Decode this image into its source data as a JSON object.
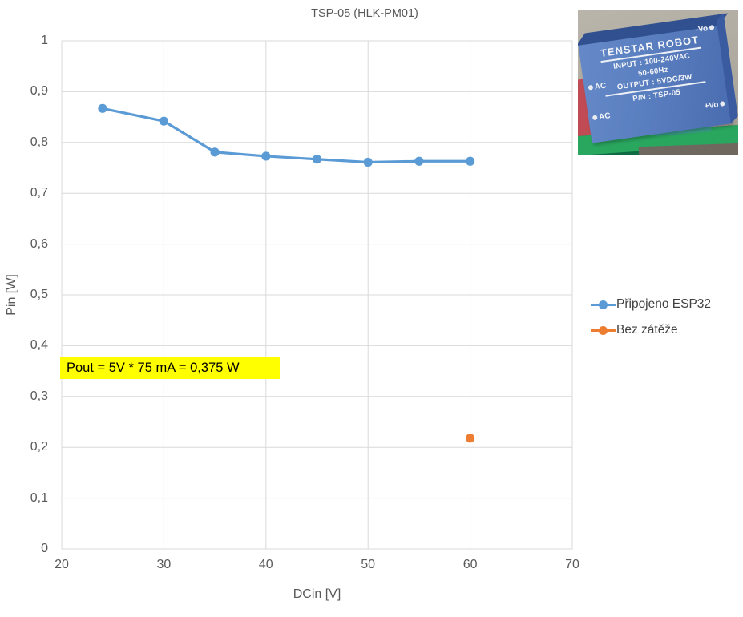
{
  "chart_data": {
    "type": "line",
    "title": "TSP-05 (HLK-PM01)",
    "xlabel": "DCin [V]",
    "ylabel": "Pin [W]",
    "xlim": [
      20,
      70
    ],
    "ylim": [
      0,
      1
    ],
    "x_ticks": [
      20,
      30,
      40,
      50,
      60,
      70
    ],
    "x_tick_labels": [
      "20",
      "30",
      "40",
      "50",
      "60",
      "70"
    ],
    "y_ticks": [
      0,
      0.1,
      0.2,
      0.3,
      0.4,
      0.5,
      0.6,
      0.7,
      0.8,
      0.9,
      1
    ],
    "y_tick_labels": [
      "0",
      "0,1",
      "0,2",
      "0,3",
      "0,4",
      "0,5",
      "0,6",
      "0,7",
      "0,8",
      "0,9",
      "1"
    ],
    "grid": true,
    "grid_color": "#D9D9D9",
    "legend_position": "right",
    "series": [
      {
        "name": "Připojeno ESP32",
        "type": "line",
        "color": "#5B9BD5",
        "x": [
          24,
          30,
          35,
          40,
          45,
          50,
          55,
          60
        ],
        "y": [
          0.867,
          0.842,
          0.781,
          0.773,
          0.767,
          0.761,
          0.763,
          0.763
        ]
      },
      {
        "name": "Bez zátěže",
        "type": "scatter",
        "color": "#ED7D31",
        "x": [
          60
        ],
        "y": [
          0.218
        ]
      }
    ],
    "annotation": {
      "text": "Pout = 5V * 75 mA = 0,375 W",
      "bg_color": "#FFFF00",
      "text_color": "#000000"
    }
  },
  "photo": {
    "brand": "TENSTAR ROBOT",
    "input_line": "INPUT : 100-240VAC",
    "freq_line": "50-60Hz",
    "output_line": "OUTPUT : 5VDC/3W",
    "part_line": "P/N : TSP-05",
    "pin_ac": "AC",
    "pin_neg": "-Vo",
    "pin_pos": "+Vo"
  }
}
